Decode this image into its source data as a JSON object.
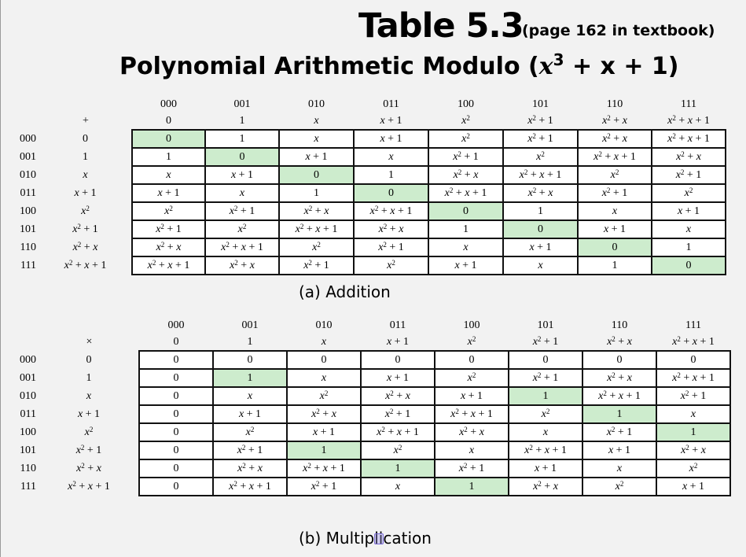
{
  "title": "Table 5.3",
  "title_note": "(page 162 in textbook)",
  "subtitle_prefix": "Polynomial Arithmetic Modulo (",
  "subtitle_var": "x",
  "subtitle_exp": "3",
  "subtitle_suffix": " + x + 1)",
  "labels": [
    "0",
    "1",
    "x",
    "x+1",
    "x^2",
    "x^2+1",
    "x^2+x",
    "x^2+x+1"
  ],
  "bins": [
    "000",
    "001",
    "010",
    "011",
    "100",
    "101",
    "110",
    "111"
  ],
  "addition": {
    "operator": "+",
    "caption": "(a) Addition",
    "rows": [
      [
        0,
        1,
        2,
        3,
        4,
        5,
        6,
        7
      ],
      [
        1,
        0,
        3,
        2,
        5,
        4,
        7,
        6
      ],
      [
        2,
        3,
        0,
        1,
        6,
        7,
        4,
        5
      ],
      [
        3,
        2,
        1,
        0,
        7,
        6,
        5,
        4
      ],
      [
        4,
        5,
        6,
        7,
        0,
        1,
        2,
        3
      ],
      [
        5,
        4,
        7,
        6,
        1,
        0,
        3,
        2
      ],
      [
        6,
        7,
        4,
        5,
        2,
        3,
        0,
        1
      ],
      [
        7,
        6,
        5,
        4,
        3,
        2,
        1,
        0
      ]
    ],
    "highlight": [
      [
        0,
        0
      ],
      [
        1,
        1
      ],
      [
        2,
        2
      ],
      [
        3,
        3
      ],
      [
        4,
        4
      ],
      [
        5,
        5
      ],
      [
        6,
        6
      ],
      [
        7,
        7
      ]
    ]
  },
  "multiplication": {
    "operator": "×",
    "caption": "(b) Multiplication",
    "rows": [
      [
        0,
        0,
        0,
        0,
        0,
        0,
        0,
        0
      ],
      [
        0,
        1,
        2,
        3,
        4,
        5,
        6,
        7
      ],
      [
        0,
        2,
        4,
        6,
        3,
        1,
        7,
        5
      ],
      [
        0,
        3,
        6,
        5,
        7,
        4,
        1,
        2
      ],
      [
        0,
        4,
        3,
        7,
        6,
        2,
        5,
        1
      ],
      [
        0,
        5,
        1,
        4,
        2,
        7,
        3,
        6
      ],
      [
        0,
        6,
        7,
        1,
        5,
        3,
        2,
        4
      ],
      [
        0,
        7,
        5,
        2,
        1,
        6,
        4,
        3
      ]
    ],
    "highlight": [
      [
        1,
        1
      ],
      [
        2,
        5
      ],
      [
        3,
        6
      ],
      [
        4,
        7
      ],
      [
        5,
        2
      ],
      [
        6,
        3
      ],
      [
        7,
        4
      ]
    ]
  }
}
